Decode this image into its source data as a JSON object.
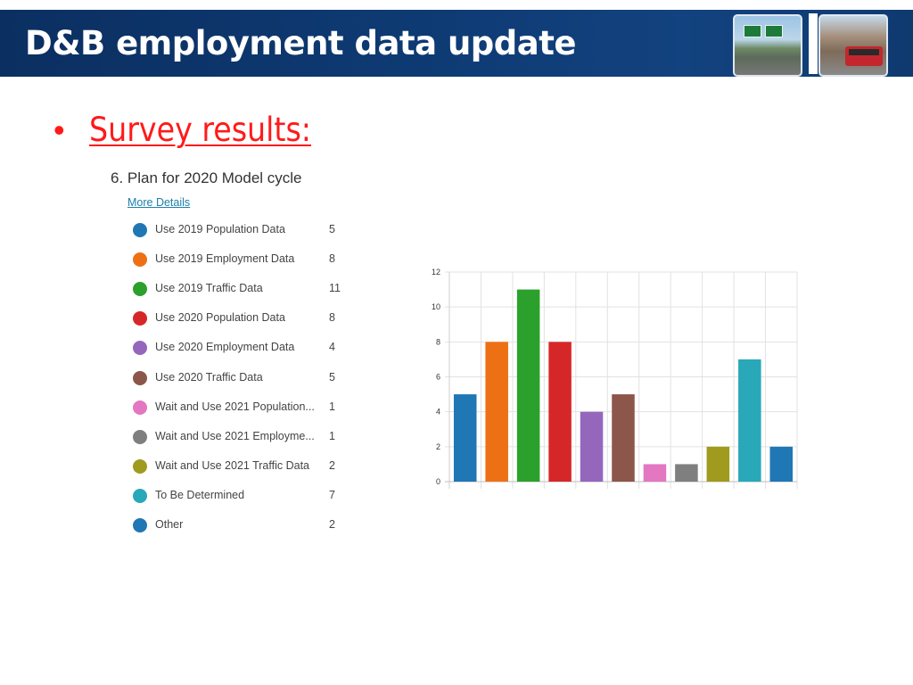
{
  "header": {
    "title": "D&B employment data update",
    "background_color": "#0e3a73",
    "photos": [
      "highway-photo",
      "bus-photo"
    ]
  },
  "bullet": {
    "symbol": "•",
    "text": "Survey results:",
    "color": "#ff1a1a"
  },
  "question": {
    "title": "6.  Plan for 2020 Model cycle",
    "more_details": "More Details"
  },
  "legend": [
    {
      "label": "Use 2019 Population Data",
      "count": "5",
      "color": "#1f77b4"
    },
    {
      "label": "Use 2019 Employment Data",
      "count": "8",
      "color": "#ee7015"
    },
    {
      "label": "Use 2019 Traffic Data",
      "count": "11",
      "color": "#2ca02c"
    },
    {
      "label": "Use 2020 Population Data",
      "count": "8",
      "color": "#d62728"
    },
    {
      "label": "Use 2020 Employment Data",
      "count": "4",
      "color": "#9467bd"
    },
    {
      "label": "Use 2020 Traffic Data",
      "count": "5",
      "color": "#8c564b"
    },
    {
      "label": "Wait and Use 2021 Population...",
      "count": "1",
      "color": "#e377c2"
    },
    {
      "label": "Wait and Use 2021 Employme...",
      "count": "1",
      "color": "#7f7f7f"
    },
    {
      "label": "Wait and Use 2021 Traffic Data",
      "count": "2",
      "color": "#a09a1e"
    },
    {
      "label": "To Be Determined",
      "count": "7",
      "color": "#28a8b8"
    },
    {
      "label": "Other",
      "count": "2",
      "color": "#1f77b4"
    }
  ],
  "chart_data": {
    "type": "bar",
    "categories": [
      "Use 2019 Population Data",
      "Use 2019 Employment Data",
      "Use 2019 Traffic Data",
      "Use 2020 Population Data",
      "Use 2020 Employment Data",
      "Use 2020 Traffic Data",
      "Wait and Use 2021 Population...",
      "Wait and Use 2021 Employme...",
      "Wait and Use 2021 Traffic Data",
      "To Be Determined",
      "Other"
    ],
    "values": [
      5,
      8,
      11,
      8,
      4,
      5,
      1,
      1,
      2,
      7,
      2
    ],
    "colors": [
      "#1f77b4",
      "#ee7015",
      "#2ca02c",
      "#d62728",
      "#9467bd",
      "#8c564b",
      "#e377c2",
      "#7f7f7f",
      "#a09a1e",
      "#28a8b8",
      "#1f77b4"
    ],
    "ylim": [
      0,
      12
    ],
    "yticks": [
      "0",
      "2",
      "4",
      "6",
      "8",
      "10",
      "12"
    ],
    "grid": true,
    "legend": "left"
  }
}
